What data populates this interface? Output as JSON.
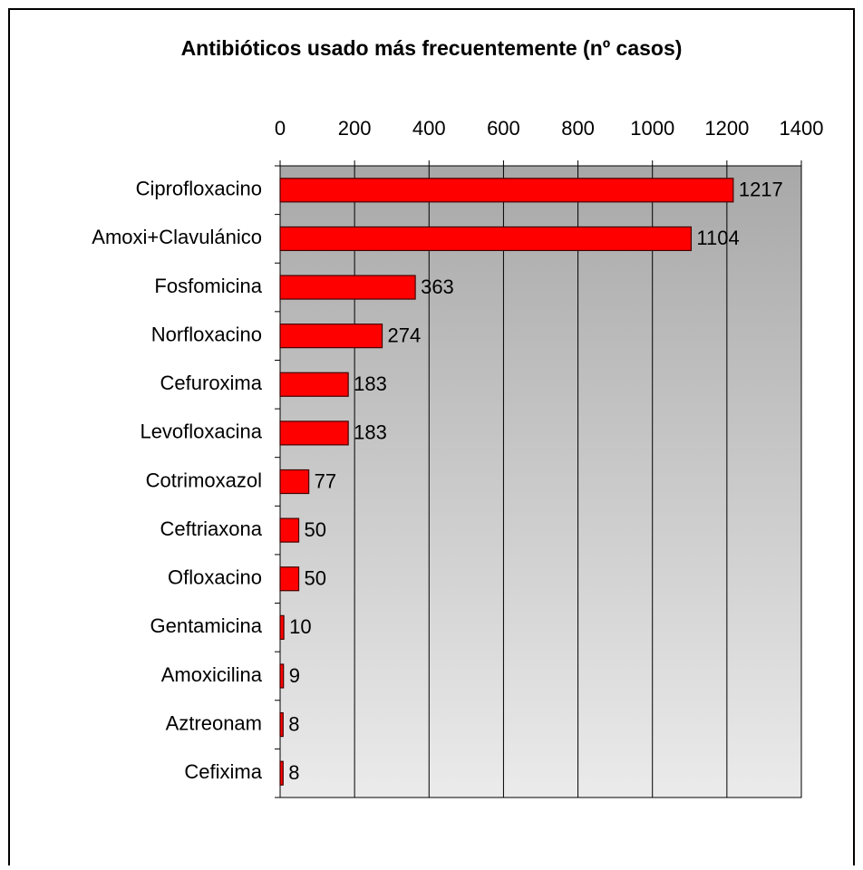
{
  "chart_data": {
    "type": "bar",
    "orientation": "horizontal",
    "title": "Antibióticos usado más frecuentemente (nº casos)",
    "categories": [
      "Ciprofloxacino",
      "Amoxi+Clavulánico",
      "Fosfomicina",
      "Norfloxacino",
      "Cefuroxima",
      "Levofloxacina",
      "Cotrimoxazol",
      "Ceftriaxona",
      "Ofloxacino",
      "Gentamicina",
      "Amoxicilina",
      "Aztreonam",
      "Cefixima"
    ],
    "values": [
      1217,
      1104,
      363,
      274,
      183,
      183,
      77,
      50,
      50,
      10,
      9,
      8,
      8
    ],
    "color": "#ff0000",
    "xlim": [
      0,
      1400
    ],
    "xticks": [
      0,
      200,
      400,
      600,
      800,
      1000,
      1200,
      1400
    ],
    "grid": true
  }
}
